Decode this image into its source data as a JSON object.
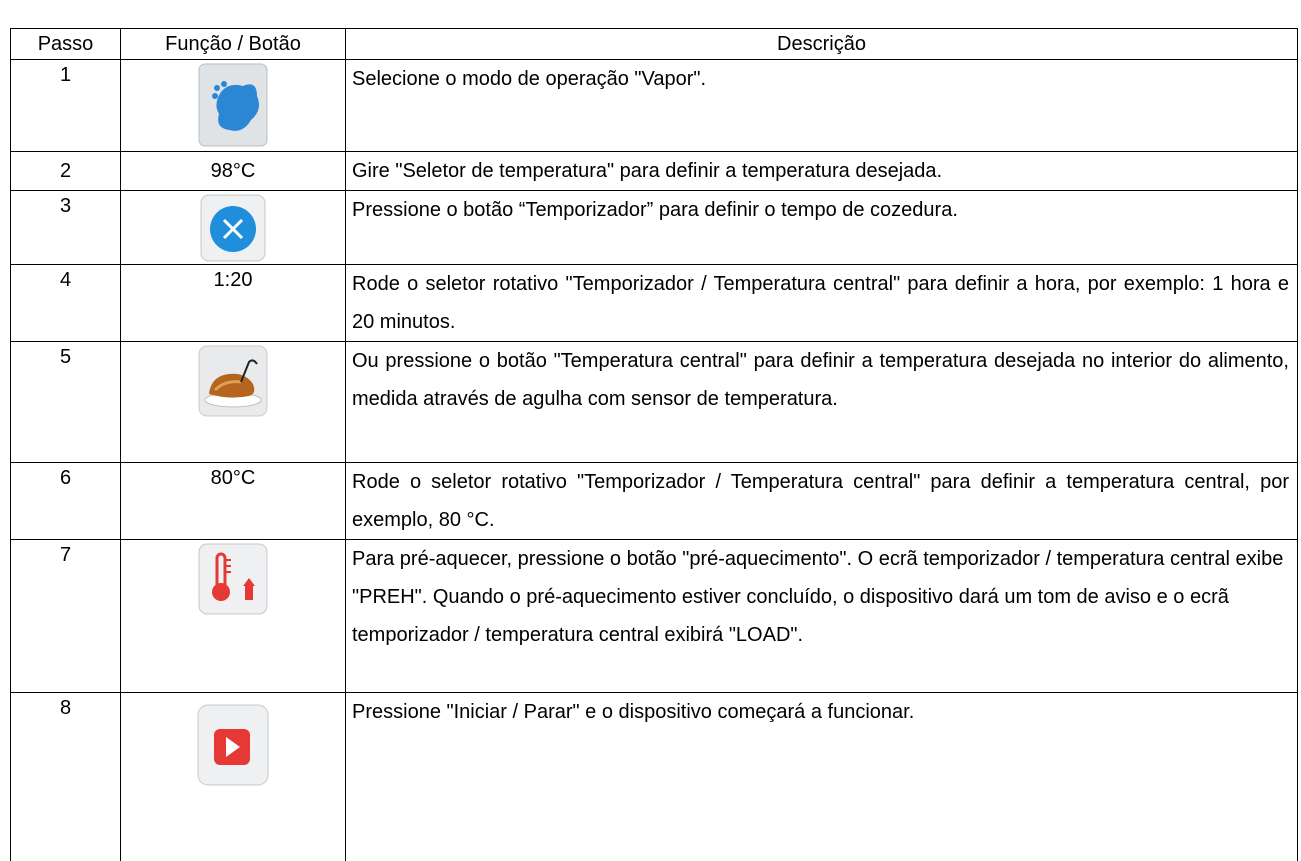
{
  "table": {
    "header": [
      "Passo",
      "Função / Botão",
      "Descrição"
    ],
    "rows": [
      {
        "step": 1,
        "description": "Selecione o modo de operação \"Vapor\"."
      },
      {
        "step": 2,
        "function": "98°C",
        "description": "Gire \"Seletor de temperatura\" para definir a temperatura desejada."
      },
      {
        "step": 3,
        "description": "Pressione o botão “Temporizador” para definir o tempo de cozedura."
      },
      {
        "step": 4,
        "function": "1:20",
        "description": "Rode o seletor rotativo \"Temporizador / Temperatura central\" para definir a hora, por exemplo: 1 hora e 20 minutos."
      },
      {
        "step": 5,
        "description": "Ou pressione o botão \"Temperatura central\" para definir a temperatura desejada no interior do alimento, medida através de agulha com sensor de temperatura."
      },
      {
        "step": 6,
        "function": "80°C",
        "description": "Rode o seletor rotativo \"Temporizador / Temperatura central\" para definir a temperatura central, por exemplo, 80 °C."
      },
      {
        "step": 7,
        "description": "Para pré-aquecer, pressione o botão \"pré-aquecimento\". O ecrã temporizador / temperatura central exibe \"PREH\". Quando o pré-aquecimento estiver concluído, o dispositivo dará um tom de aviso e o ecrã temporizador / temperatura central exibirá \"LOAD\"."
      },
      {
        "step": 8,
        "description": "Pressione \"Iniciar / Parar\" e o dispositivo começará a funcionar."
      }
    ]
  }
}
